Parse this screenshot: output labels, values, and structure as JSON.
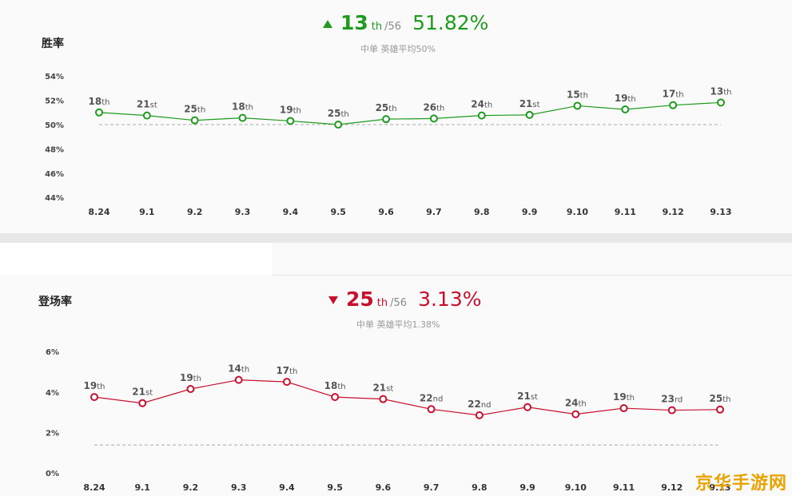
{
  "chart_data": [
    {
      "type": "line",
      "title": "胜率",
      "headline": {
        "rank": "13",
        "suffix": "th",
        "total": "/56",
        "value": "51.82%",
        "direction": "up",
        "color": "#1e9b1e"
      },
      "average_label": "中单 英雄平均50%",
      "average": 50,
      "ylim": [
        44,
        55
      ],
      "yticks": [
        "44%",
        "46%",
        "48%",
        "50%",
        "52%",
        "54%"
      ],
      "ytick_values": [
        44,
        46,
        48,
        50,
        52,
        54
      ],
      "categories": [
        "8.24",
        "9.1",
        "9.2",
        "9.3",
        "9.4",
        "9.5",
        "9.6",
        "9.7",
        "9.8",
        "9.9",
        "9.10",
        "9.11",
        "9.12",
        "9.13"
      ],
      "series": [
        {
          "values": [
            51.0,
            50.75,
            50.35,
            50.55,
            50.3,
            50.0,
            50.45,
            50.5,
            50.75,
            50.8,
            51.55,
            51.25,
            51.6,
            51.82
          ],
          "labels": [
            "18th",
            "21st",
            "25th",
            "18th",
            "19th",
            "25th",
            "25th",
            "26th",
            "24th",
            "21st",
            "15th",
            "19th",
            "17th",
            "13th"
          ],
          "color": "#1e9b1e"
        }
      ]
    },
    {
      "type": "line",
      "title": "登场率",
      "headline": {
        "rank": "25",
        "suffix": "th",
        "total": "/56",
        "value": "3.13%",
        "direction": "down",
        "color": "#c8102e"
      },
      "average_label": "中单 英雄平均1.38%",
      "average": 1.38,
      "ylim": [
        0,
        6
      ],
      "yticks": [
        "0%",
        "2%",
        "4%",
        "6%"
      ],
      "ytick_values": [
        0,
        2,
        4,
        6
      ],
      "categories": [
        "8.24",
        "9.1",
        "9.2",
        "9.3",
        "9.4",
        "9.5",
        "9.6",
        "9.7",
        "9.8",
        "9.9",
        "9.10",
        "9.11",
        "9.12",
        "9.13"
      ],
      "series": [
        {
          "values": [
            3.75,
            3.45,
            4.15,
            4.6,
            4.5,
            3.75,
            3.65,
            3.15,
            2.85,
            3.25,
            2.9,
            3.2,
            3.1,
            3.13
          ],
          "labels": [
            "19th",
            "21st",
            "19th",
            "14th",
            "17th",
            "18th",
            "21st",
            "22nd",
            "22nd",
            "21st",
            "24th",
            "19th",
            "23rd",
            "25th"
          ],
          "color": "#c8102e"
        }
      ]
    }
  ],
  "watermark": "京华手游网"
}
